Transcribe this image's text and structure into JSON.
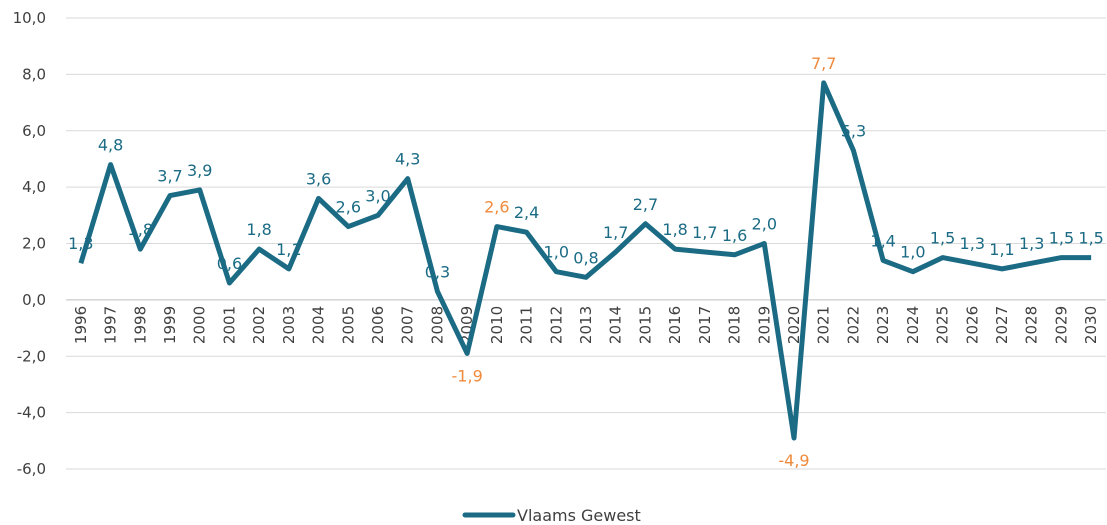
{
  "chart_data": {
    "type": "line",
    "categories": [
      "1996",
      "1997",
      "1998",
      "1999",
      "2000",
      "2001",
      "2002",
      "2003",
      "2004",
      "2005",
      "2006",
      "2007",
      "2008",
      "2009",
      "2010",
      "2011",
      "2012",
      "2013",
      "2014",
      "2015",
      "2016",
      "2017",
      "2018",
      "2019",
      "2020",
      "2021",
      "2022",
      "2023",
      "2024",
      "2025",
      "2026",
      "2027",
      "2028",
      "2029",
      "2030"
    ],
    "series": [
      {
        "name": "Vlaams Gewest",
        "color": "#1b6b85",
        "values": [
          1.3,
          4.8,
          1.8,
          3.7,
          3.9,
          0.6,
          1.8,
          1.1,
          3.6,
          2.6,
          3.0,
          4.3,
          0.3,
          -1.9,
          2.6,
          2.4,
          1.0,
          0.8,
          1.7,
          2.7,
          1.8,
          1.7,
          1.6,
          2.0,
          -4.9,
          7.7,
          5.3,
          1.4,
          1.0,
          1.5,
          1.3,
          1.1,
          1.3,
          1.5,
          1.5
        ],
        "value_labels": [
          "1,3",
          "4,8",
          "1,8",
          "3,7",
          "3,9",
          "0,6",
          "1,8",
          "1,1",
          "3,6",
          "2,6",
          "3,0",
          "4,3",
          "0,3",
          "-1,9",
          "2,6",
          "2,4",
          "1,0",
          "0,8",
          "1,7",
          "2,7",
          "1,8",
          "1,7",
          "1,6",
          "2,0",
          "-4,9",
          "7,7",
          "5,3",
          "1,4",
          "1,0",
          "1,5",
          "1,3",
          "1,1",
          "1,3",
          "1,5",
          "1,5"
        ],
        "value_label_colors": [
          "#1b6b85",
          "#1b6b85",
          "#1b6b85",
          "#1b6b85",
          "#1b6b85",
          "#1b6b85",
          "#1b6b85",
          "#1b6b85",
          "#1b6b85",
          "#1b6b85",
          "#1b6b85",
          "#1b6b85",
          "#1b6b85",
          "#f08a3c",
          "#f08a3c",
          "#1b6b85",
          "#1b6b85",
          "#1b6b85",
          "#1b6b85",
          "#1b6b85",
          "#1b6b85",
          "#1b6b85",
          "#1b6b85",
          "#1b6b85",
          "#f08a3c",
          "#f08a3c",
          "#1b6b85",
          "#1b6b85",
          "#1b6b85",
          "#1b6b85",
          "#1b6b85",
          "#1b6b85",
          "#1b6b85",
          "#1b6b85",
          "#1b6b85"
        ]
      }
    ],
    "ylim": [
      -6,
      10
    ],
    "yticks": [
      {
        "value": -6,
        "label": "-6,0"
      },
      {
        "value": -4,
        "label": "-4,0"
      },
      {
        "value": -2,
        "label": "-2,0"
      },
      {
        "value": 0,
        "label": "0,0"
      },
      {
        "value": 2,
        "label": "2,0"
      },
      {
        "value": 4,
        "label": "4,0"
      },
      {
        "value": 6,
        "label": "6,0"
      },
      {
        "value": 8,
        "label": "8,0"
      },
      {
        "value": 10,
        "label": "10,0"
      }
    ],
    "grid": true,
    "legend": "bottom"
  }
}
